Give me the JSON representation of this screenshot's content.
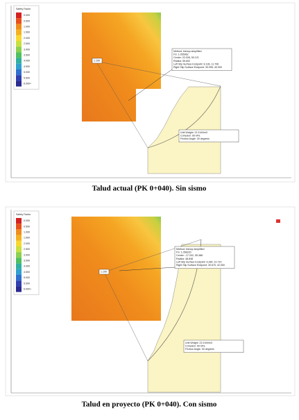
{
  "figures": [
    {
      "legend": {
        "title": "Safety Factor",
        "values": [
          "0.000",
          "0.500",
          "1.000",
          "1.500",
          "2.000",
          "2.500",
          "3.000",
          "3.500",
          "4.000",
          "4.500",
          "5.000",
          "5.500",
          "6.000+"
        ]
      },
      "fs_label": "1.100",
      "info": [
        "Method: bishop simplified",
        "FS: 1.055962",
        "Center: 22.028, 50.121",
        "Radius: 55.602",
        "Left Slip Surface Endpoint: 8.136, 11.706",
        "Right Slip Surface Endpoint: 30.995, 40.000"
      ],
      "material": [
        "Unit Weight: 21.5 kN/m3",
        "Cohesion: 60 kPa",
        "Friction Angle: 30 degrees"
      ],
      "caption": "Talud actual (PK 0+040). Sin sismo"
    },
    {
      "legend": {
        "title": "Safety Factor",
        "values": [
          "0.000",
          "0.500",
          "1.000",
          "1.500",
          "2.000",
          "2.500",
          "3.000",
          "3.500",
          "4.000",
          "4.500",
          "5.000",
          "5.500",
          "6.000+"
        ]
      },
      "fs_label": "1.100",
      "info": [
        "Method: bishop simplified",
        "FS: 1.058220",
        "Center: -17.202, 55.388",
        "Radius: 48.848",
        "Left Slip Surface Endpoint: 6.284, 10.710",
        "Right Slip Surface Endpoint: 30.670, 42.000"
      ],
      "material": [
        "Unit Weight: 21.5 kN/m3",
        "Cohesion: 60 kPa",
        "Friction Angle: 30 degrees"
      ],
      "caption": "Talud en proyecto (PK 0+040). Con sismo"
    }
  ]
}
